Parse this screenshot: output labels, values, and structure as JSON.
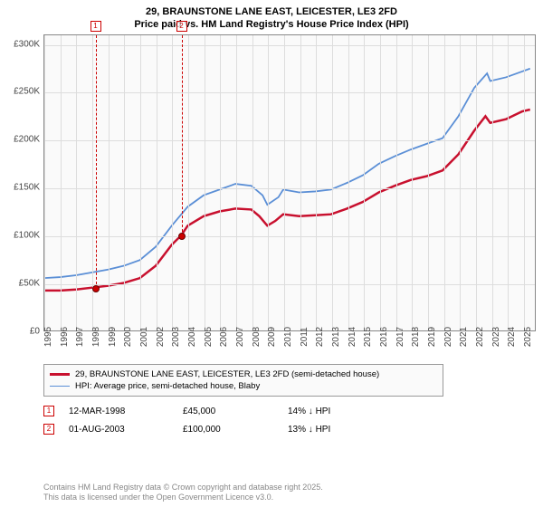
{
  "title_line1": "29, BRAUNSTONE LANE EAST, LEICESTER, LE3 2FD",
  "title_line2": "Price paid vs. HM Land Registry's House Price Index (HPI)",
  "chart": {
    "type": "line",
    "background_color": "#fafafa",
    "grid_color": "#dddddd",
    "border_color": "#888888",
    "x_years": [
      1995,
      1996,
      1997,
      1998,
      1999,
      2000,
      2001,
      2002,
      2003,
      2004,
      2005,
      2006,
      2007,
      2008,
      2009,
      2010,
      2011,
      2012,
      2013,
      2014,
      2015,
      2016,
      2017,
      2018,
      2019,
      2020,
      2021,
      2022,
      2023,
      2024,
      2025
    ],
    "x_min": 1995,
    "x_max": 2025.8,
    "y_min": 0,
    "y_max": 310000,
    "y_ticks": [
      0,
      50000,
      100000,
      150000,
      200000,
      250000,
      300000
    ],
    "y_tick_labels": [
      "£0",
      "£50K",
      "£100K",
      "£150K",
      "£200K",
      "£250K",
      "£300K"
    ],
    "series": [
      {
        "name": "property",
        "label": "29, BRAUNSTONE LANE EAST, LEICESTER, LE3 2FD (semi-detached house)",
        "color": "#c8102e",
        "width": 2.5,
        "points": [
          [
            1995,
            42000
          ],
          [
            1996,
            42000
          ],
          [
            1997,
            43000
          ],
          [
            1998,
            45000
          ],
          [
            1999,
            47000
          ],
          [
            2000,
            50000
          ],
          [
            2001,
            55000
          ],
          [
            2002,
            68000
          ],
          [
            2003,
            90000
          ],
          [
            2003.6,
            100000
          ],
          [
            2004,
            110000
          ],
          [
            2005,
            120000
          ],
          [
            2006,
            125000
          ],
          [
            2007,
            128000
          ],
          [
            2008,
            127000
          ],
          [
            2008.5,
            120000
          ],
          [
            2009,
            110000
          ],
          [
            2009.5,
            115000
          ],
          [
            2010,
            122000
          ],
          [
            2011,
            120000
          ],
          [
            2012,
            121000
          ],
          [
            2013,
            122000
          ],
          [
            2014,
            128000
          ],
          [
            2015,
            135000
          ],
          [
            2016,
            145000
          ],
          [
            2017,
            152000
          ],
          [
            2018,
            158000
          ],
          [
            2019,
            162000
          ],
          [
            2020,
            168000
          ],
          [
            2021,
            185000
          ],
          [
            2022,
            210000
          ],
          [
            2022.7,
            225000
          ],
          [
            2023,
            218000
          ],
          [
            2024,
            222000
          ],
          [
            2025,
            230000
          ],
          [
            2025.5,
            232000
          ]
        ]
      },
      {
        "name": "hpi",
        "label": "HPI: Average price, semi-detached house, Blaby",
        "color": "#5b8fd6",
        "width": 1.8,
        "points": [
          [
            1995,
            55000
          ],
          [
            1996,
            56000
          ],
          [
            1997,
            58000
          ],
          [
            1998,
            61000
          ],
          [
            1999,
            64000
          ],
          [
            2000,
            68000
          ],
          [
            2001,
            74000
          ],
          [
            2002,
            88000
          ],
          [
            2003,
            110000
          ],
          [
            2004,
            130000
          ],
          [
            2005,
            142000
          ],
          [
            2006,
            148000
          ],
          [
            2007,
            154000
          ],
          [
            2008,
            152000
          ],
          [
            2008.7,
            142000
          ],
          [
            2009,
            132000
          ],
          [
            2009.7,
            140000
          ],
          [
            2010,
            148000
          ],
          [
            2011,
            145000
          ],
          [
            2012,
            146000
          ],
          [
            2013,
            148000
          ],
          [
            2014,
            155000
          ],
          [
            2015,
            163000
          ],
          [
            2016,
            175000
          ],
          [
            2017,
            183000
          ],
          [
            2018,
            190000
          ],
          [
            2019,
            196000
          ],
          [
            2020,
            202000
          ],
          [
            2021,
            225000
          ],
          [
            2022,
            255000
          ],
          [
            2022.8,
            270000
          ],
          [
            2023,
            262000
          ],
          [
            2024,
            266000
          ],
          [
            2025,
            272000
          ],
          [
            2025.5,
            275000
          ]
        ]
      }
    ],
    "markers": [
      {
        "num": "1",
        "year": 1998.2,
        "price": 45000
      },
      {
        "num": "2",
        "year": 2003.58,
        "price": 100000
      }
    ]
  },
  "sales": [
    {
      "num": "1",
      "date": "12-MAR-1998",
      "price": "£45,000",
      "diff": "14% ↓ HPI"
    },
    {
      "num": "2",
      "date": "01-AUG-2003",
      "price": "£100,000",
      "diff": "13% ↓ HPI"
    }
  ],
  "footer_line1": "Contains HM Land Registry data © Crown copyright and database right 2025.",
  "footer_line2": "This data is licensed under the Open Government Licence v3.0."
}
